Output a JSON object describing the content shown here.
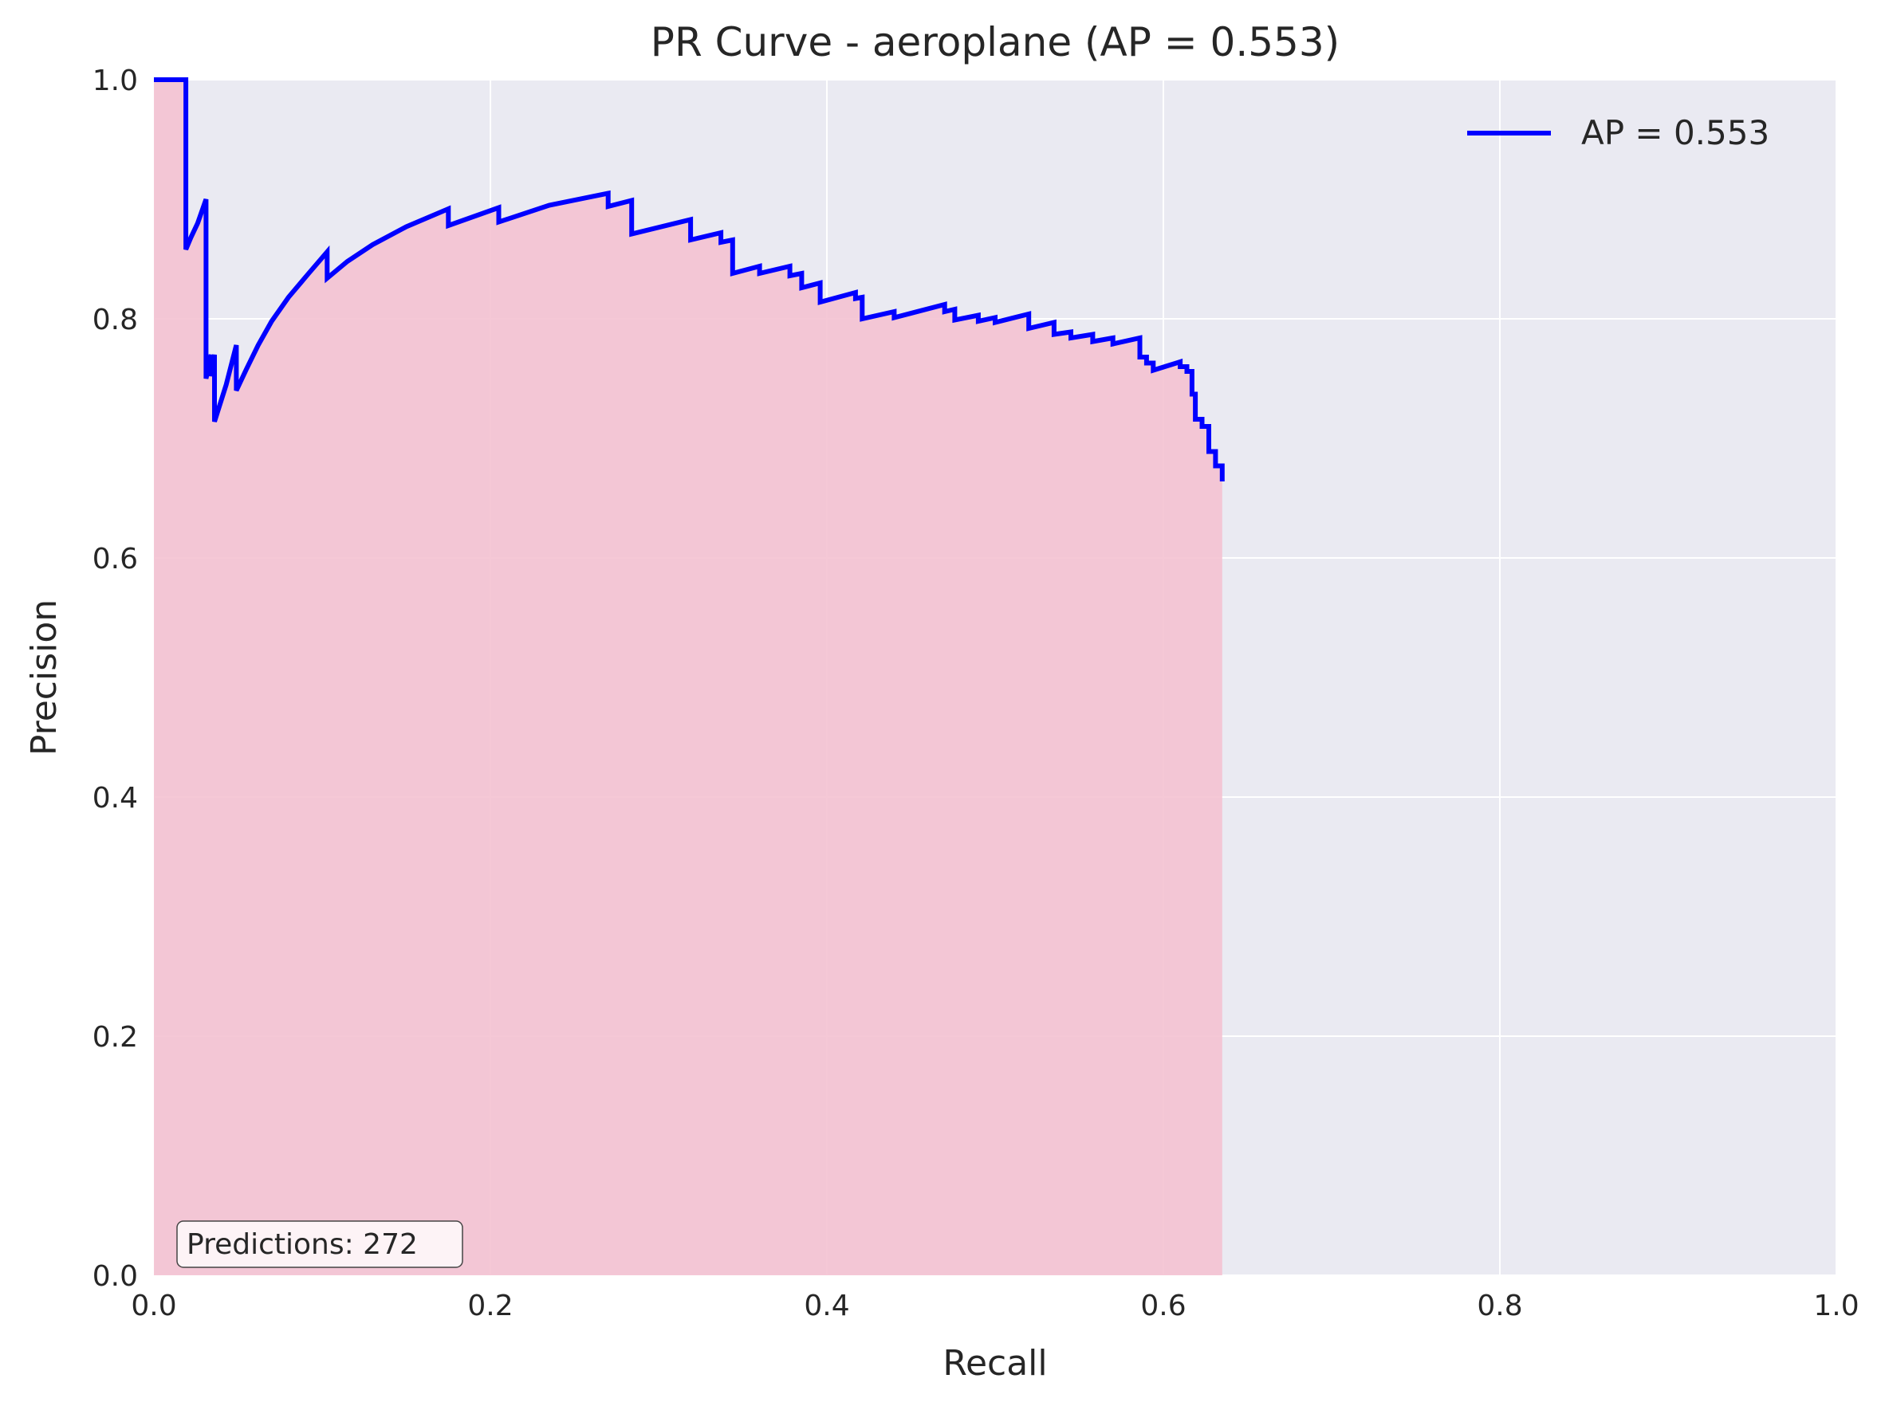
{
  "chart_data": {
    "type": "line",
    "title": "PR Curve - aeroplane (AP = 0.553)",
    "xlabel": "Recall",
    "ylabel": "Precision",
    "xlim": [
      0.0,
      1.0
    ],
    "ylim": [
      0.0,
      1.0
    ],
    "xticks": [
      "0.0",
      "0.2",
      "0.4",
      "0.6",
      "0.8",
      "1.0"
    ],
    "yticks": [
      "0.0",
      "0.2",
      "0.4",
      "0.6",
      "0.8",
      "1.0"
    ],
    "grid": true,
    "legend": {
      "placement": "top-right",
      "entries": [
        "AP = 0.553"
      ]
    },
    "annotation": "Predictions: 272",
    "colors": {
      "background": "#eaeaf2",
      "line": "#0000ff",
      "fill": "#f4c2d2",
      "grid": "#ffffff",
      "text": "#262626"
    },
    "series": [
      {
        "name": "AP = 0.553",
        "fill_under": true,
        "points": [
          [
            0.0,
            1.0
          ],
          [
            0.004,
            1.0
          ],
          [
            0.019,
            1.0
          ],
          [
            0.019,
            0.858
          ],
          [
            0.022,
            0.868
          ],
          [
            0.026,
            0.88
          ],
          [
            0.031,
            0.9
          ],
          [
            0.031,
            0.75
          ],
          [
            0.034,
            0.77
          ],
          [
            0.034,
            0.752
          ],
          [
            0.036,
            0.77
          ],
          [
            0.036,
            0.714
          ],
          [
            0.043,
            0.745
          ],
          [
            0.049,
            0.778
          ],
          [
            0.049,
            0.74
          ],
          [
            0.055,
            0.758
          ],
          [
            0.062,
            0.778
          ],
          [
            0.07,
            0.798
          ],
          [
            0.08,
            0.818
          ],
          [
            0.092,
            0.838
          ],
          [
            0.103,
            0.856
          ],
          [
            0.103,
            0.834
          ],
          [
            0.115,
            0.848
          ],
          [
            0.13,
            0.862
          ],
          [
            0.15,
            0.877
          ],
          [
            0.175,
            0.892
          ],
          [
            0.175,
            0.878
          ],
          [
            0.205,
            0.893
          ],
          [
            0.205,
            0.881
          ],
          [
            0.235,
            0.895
          ],
          [
            0.27,
            0.905
          ],
          [
            0.27,
            0.894
          ],
          [
            0.284,
            0.899
          ],
          [
            0.284,
            0.871
          ],
          [
            0.319,
            0.883
          ],
          [
            0.319,
            0.866
          ],
          [
            0.337,
            0.872
          ],
          [
            0.337,
            0.864
          ],
          [
            0.344,
            0.866
          ],
          [
            0.344,
            0.838
          ],
          [
            0.36,
            0.844
          ],
          [
            0.36,
            0.838
          ],
          [
            0.378,
            0.844
          ],
          [
            0.378,
            0.836
          ],
          [
            0.385,
            0.838
          ],
          [
            0.385,
            0.826
          ],
          [
            0.396,
            0.83
          ],
          [
            0.396,
            0.814
          ],
          [
            0.417,
            0.822
          ],
          [
            0.417,
            0.817
          ],
          [
            0.421,
            0.818
          ],
          [
            0.421,
            0.8
          ],
          [
            0.44,
            0.806
          ],
          [
            0.44,
            0.801
          ],
          [
            0.47,
            0.812
          ],
          [
            0.47,
            0.806
          ],
          [
            0.476,
            0.808
          ],
          [
            0.476,
            0.799
          ],
          [
            0.49,
            0.803
          ],
          [
            0.49,
            0.798
          ],
          [
            0.5,
            0.801
          ],
          [
            0.5,
            0.797
          ],
          [
            0.52,
            0.804
          ],
          [
            0.52,
            0.792
          ],
          [
            0.535,
            0.797
          ],
          [
            0.535,
            0.787
          ],
          [
            0.545,
            0.789
          ],
          [
            0.545,
            0.784
          ],
          [
            0.558,
            0.787
          ],
          [
            0.558,
            0.781
          ],
          [
            0.57,
            0.784
          ],
          [
            0.57,
            0.779
          ],
          [
            0.586,
            0.784
          ],
          [
            0.586,
            0.768
          ],
          [
            0.59,
            0.768
          ],
          [
            0.59,
            0.763
          ],
          [
            0.594,
            0.763
          ],
          [
            0.594,
            0.757
          ],
          [
            0.61,
            0.764
          ],
          [
            0.61,
            0.76
          ],
          [
            0.614,
            0.76
          ],
          [
            0.614,
            0.756
          ],
          [
            0.617,
            0.756
          ],
          [
            0.617,
            0.737
          ],
          [
            0.619,
            0.737
          ],
          [
            0.619,
            0.716
          ],
          [
            0.623,
            0.716
          ],
          [
            0.623,
            0.71
          ],
          [
            0.627,
            0.71
          ],
          [
            0.627,
            0.689
          ],
          [
            0.631,
            0.689
          ],
          [
            0.631,
            0.677
          ],
          [
            0.635,
            0.677
          ],
          [
            0.635,
            0.664
          ]
        ]
      }
    ]
  }
}
